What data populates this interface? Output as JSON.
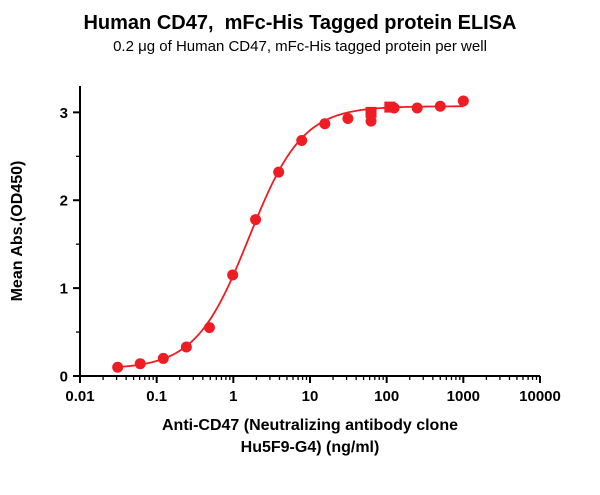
{
  "header": {
    "title": "Human CD47,  mFc-His Tagged protein ELISA",
    "subtitle": "0.2 μg of Human CD47, mFc-His tagged protein per well"
  },
  "colors": {
    "accent": "#EE1D24",
    "axis": "#000000",
    "background": "#FFFFFF"
  },
  "chart_data": {
    "type": "scatter",
    "title": "Human CD47,  mFc-His Tagged protein ELISA",
    "subtitle": "0.2 μg of Human CD47, mFc-His tagged protein per well",
    "xlabel_line1": "Anti-CD47 (Neutralizing antibody clone",
    "xlabel_line2": "Hu5F9-G4) (ng/ml)",
    "ylabel": "Mean Abs.(OD450)",
    "x_scale": "log10",
    "xlim": [
      0.01,
      10000
    ],
    "ylim": [
      0,
      3.3
    ],
    "x_ticks": [
      0.01,
      0.1,
      1,
      10,
      100,
      1000,
      10000
    ],
    "x_tick_labels": [
      "0.01",
      "0.1",
      "1",
      "10",
      "100",
      "1000",
      "10000"
    ],
    "y_ticks": [
      0,
      1,
      2,
      3
    ],
    "y_minor_step": 0.5,
    "grid": false,
    "legend": "none",
    "series": [
      {
        "name": "Mean Abs. (circle markers)",
        "marker": "circle",
        "color": "#EE1D24",
        "points": [
          [
            0.031,
            0.1
          ],
          [
            0.061,
            0.14
          ],
          [
            0.122,
            0.2
          ],
          [
            0.244,
            0.33
          ],
          [
            0.488,
            0.55
          ],
          [
            0.98,
            1.15
          ],
          [
            1.95,
            1.78
          ],
          [
            3.9,
            2.32
          ],
          [
            7.8,
            2.68
          ],
          [
            15.6,
            2.87
          ],
          [
            31.2,
            2.93
          ],
          [
            62.5,
            2.9
          ],
          [
            125,
            3.05
          ],
          [
            250,
            3.05
          ],
          [
            500,
            3.07
          ],
          [
            1000,
            3.13
          ]
        ]
      },
      {
        "name": "Mean Abs. (square markers)",
        "marker": "square",
        "color": "#EE1D24",
        "points": [
          [
            62.5,
            3.0
          ],
          [
            110,
            3.06
          ]
        ]
      }
    ],
    "fit_curve": {
      "model": "4PL",
      "bottom": 0.08,
      "top": 3.07,
      "ec50": 1.6,
      "hill": 1.25,
      "x_range": [
        0.031,
        1000
      ],
      "color": "#EE1D24"
    }
  }
}
